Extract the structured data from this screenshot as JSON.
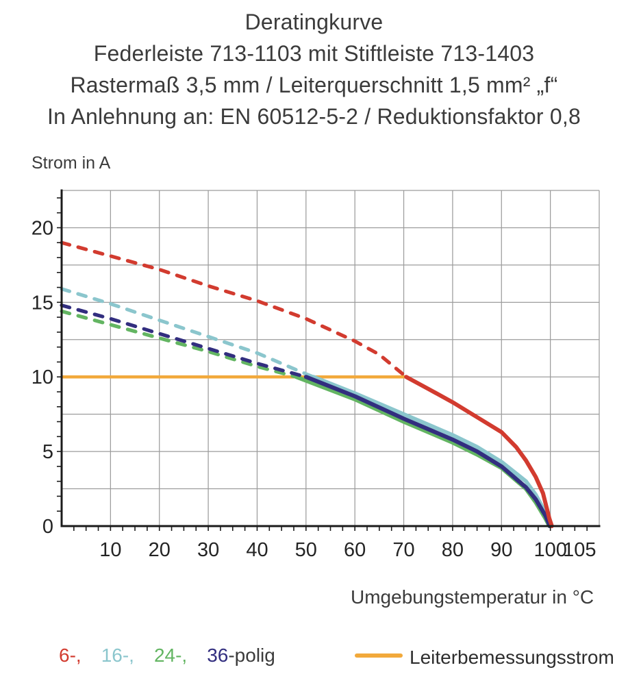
{
  "background": "#ffffff",
  "chart_data": {
    "type": "line",
    "title": "Deratingkurve",
    "subtitle_lines": [
      "Federleiste 713-1103 mit Stiftleiste 713-1403",
      "Rastermaß 3,5 mm / Leiterquerschnitt 1,5 mm² „f“",
      "In Anlehnung an: EN 60512-5-2 / Reduktionsfaktor 0,8"
    ],
    "xlabel": "Umgebungstemperatur in °C",
    "ylabel": "Strom in A",
    "xlim": [
      0,
      110
    ],
    "ylim": [
      0,
      22.5
    ],
    "x_gridline_step": 10,
    "y_gridline_step": 2.5,
    "x_minor_tick_step": 2.5,
    "y_minor_tick_step": 1,
    "x_ticks": [
      {
        "v": 10,
        "label": "10"
      },
      {
        "v": 20,
        "label": "20"
      },
      {
        "v": 30,
        "label": "30"
      },
      {
        "v": 40,
        "label": "40"
      },
      {
        "v": 50,
        "label": "50"
      },
      {
        "v": 60,
        "label": "60"
      },
      {
        "v": 70,
        "label": "70"
      },
      {
        "v": 80,
        "label": "80"
      },
      {
        "v": 90,
        "label": "90"
      },
      {
        "v": 100,
        "label": "100"
      },
      {
        "v": 105,
        "label": "105",
        "dx": 7
      }
    ],
    "y_ticks": [
      {
        "v": 0,
        "label": "0"
      },
      {
        "v": 5,
        "label": "5"
      },
      {
        "v": 10,
        "label": "10"
      },
      {
        "v": 15,
        "label": "15"
      },
      {
        "v": 20,
        "label": "20"
      }
    ],
    "grid_color": "#9c9c9c",
    "axis_color": "#1b1b1b",
    "tick_label_color": "#242424",
    "series": [
      {
        "name": "6-polig",
        "color": "#d23b2f",
        "segments": [
          {
            "style": "dashed",
            "points": [
              [
                0,
                19.0
              ],
              [
                10,
                18.1
              ],
              [
                20,
                17.2
              ],
              [
                30,
                16.1
              ],
              [
                40,
                15.1
              ],
              [
                50,
                13.9
              ],
              [
                60,
                12.4
              ],
              [
                65,
                11.5
              ],
              [
                70.5,
                10.0
              ]
            ]
          },
          {
            "style": "solid",
            "points": [
              [
                70.5,
                10.0
              ],
              [
                75,
                9.2
              ],
              [
                80,
                8.3
              ],
              [
                85,
                7.3
              ],
              [
                90,
                6.3
              ],
              [
                93,
                5.3
              ],
              [
                95,
                4.4
              ],
              [
                97,
                3.3
              ],
              [
                98.5,
                2.2
              ],
              [
                99.8,
                0.5
              ],
              [
                100.3,
                0
              ]
            ]
          }
        ]
      },
      {
        "name": "16-polig",
        "color": "#8bc6cd",
        "segments": [
          {
            "style": "dashed",
            "points": [
              [
                0,
                15.9
              ],
              [
                10,
                14.9
              ],
              [
                20,
                13.8
              ],
              [
                30,
                12.7
              ],
              [
                40,
                11.6
              ],
              [
                50,
                10.2
              ],
              [
                51.5,
                10.0
              ]
            ]
          },
          {
            "style": "solid",
            "points": [
              [
                51.5,
                10.0
              ],
              [
                60,
                8.9
              ],
              [
                70,
                7.5
              ],
              [
                80,
                6.1
              ],
              [
                85,
                5.3
              ],
              [
                90,
                4.3
              ],
              [
                95,
                3.0
              ],
              [
                97,
                2.1
              ],
              [
                99,
                0.9
              ],
              [
                100,
                0
              ]
            ]
          }
        ]
      },
      {
        "name": "24-polig",
        "color": "#63b562",
        "segments": [
          {
            "style": "dashed",
            "points": [
              [
                0,
                14.4
              ],
              [
                10,
                13.5
              ],
              [
                20,
                12.6
              ],
              [
                30,
                11.7
              ],
              [
                40,
                10.7
              ],
              [
                48,
                10.0
              ]
            ]
          },
          {
            "style": "solid",
            "points": [
              [
                48,
                10.0
              ],
              [
                60,
                8.5
              ],
              [
                70,
                7.0
              ],
              [
                80,
                5.6
              ],
              [
                85,
                4.8
              ],
              [
                90,
                3.9
              ],
              [
                95,
                2.5
              ],
              [
                97,
                1.6
              ],
              [
                99,
                0.5
              ],
              [
                99.8,
                0
              ]
            ]
          }
        ]
      },
      {
        "name": "36-polig",
        "color": "#322e7f",
        "segments": [
          {
            "style": "dashed",
            "points": [
              [
                0,
                14.8
              ],
              [
                10,
                13.9
              ],
              [
                20,
                12.9
              ],
              [
                30,
                11.9
              ],
              [
                40,
                10.9
              ],
              [
                50,
                10.0
              ]
            ]
          },
          {
            "style": "solid",
            "points": [
              [
                50,
                10.0
              ],
              [
                60,
                8.7
              ],
              [
                70,
                7.2
              ],
              [
                80,
                5.8
              ],
              [
                85,
                5.0
              ],
              [
                90,
                4.0
              ],
              [
                95,
                2.6
              ],
              [
                97,
                1.8
              ],
              [
                99,
                0.7
              ],
              [
                99.9,
                0
              ]
            ]
          }
        ]
      }
    ],
    "reference_line": {
      "label": "Leiterbemessungsstrom",
      "y": 10,
      "x_start": 0,
      "x_end": 70.5,
      "color": "#f2a93b"
    }
  },
  "legend": {
    "items": [
      {
        "label": "6-,",
        "series": "6-polig"
      },
      {
        "label": "16-,",
        "series": "16-polig"
      },
      {
        "label": "24-,",
        "series": "24-polig"
      },
      {
        "label": "36",
        "series": "36-polig"
      }
    ],
    "suffix": "-polig",
    "suffix_color": "#3b3b3b",
    "reference_label": "Leiterbemessungsstrom"
  }
}
